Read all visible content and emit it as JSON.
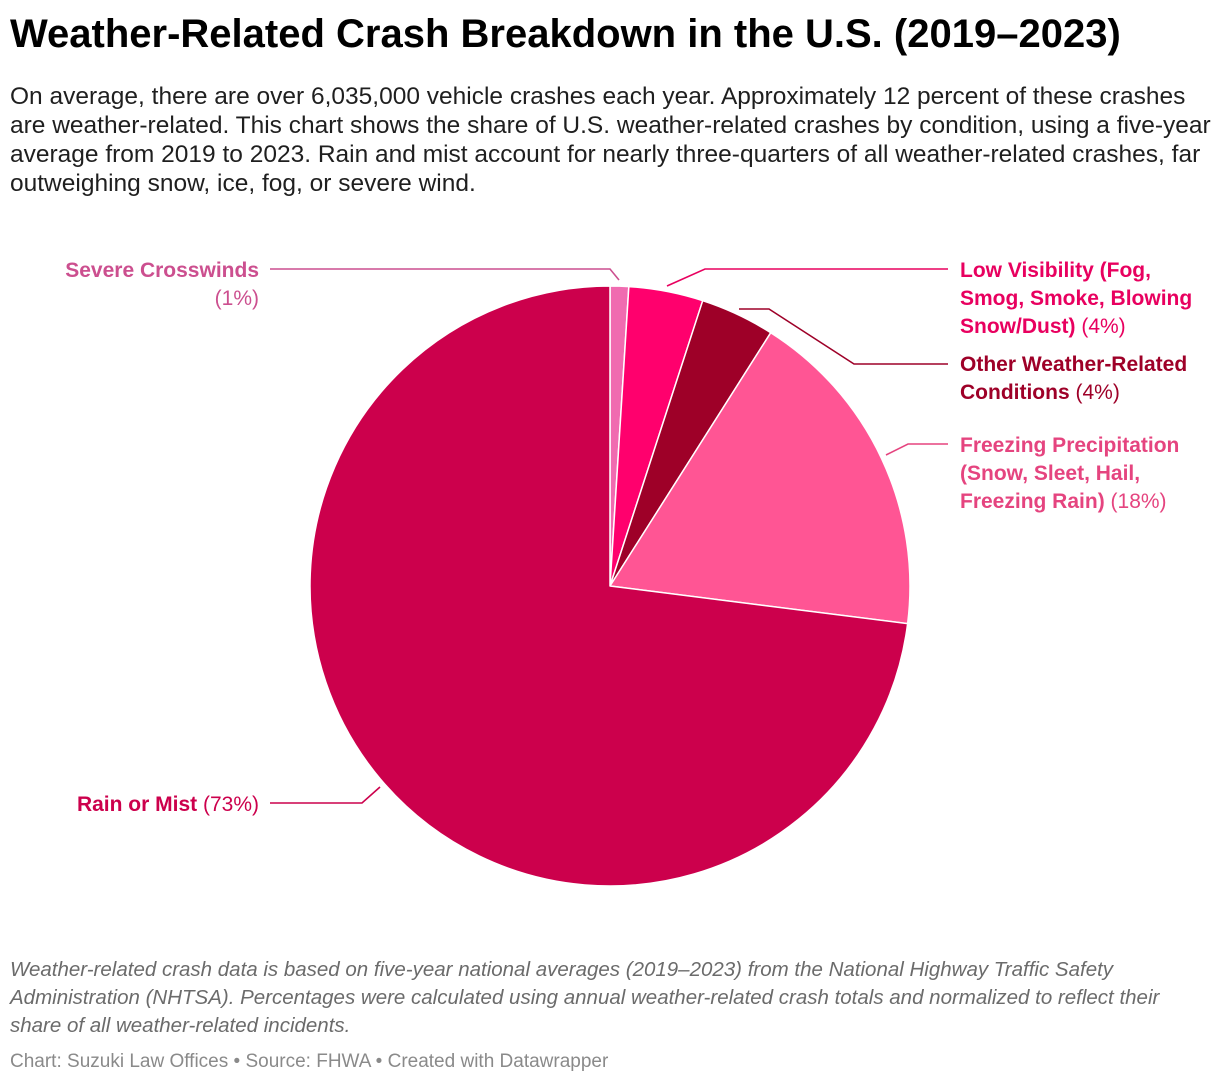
{
  "title": "Weather-Related Crash Breakdown in the U.S. (2019–2023)",
  "description": "On average, there are over 6,035,000 vehicle crashes each year. Approximately 12 percent of these crashes are weather-related. This chart shows the share of U.S. weather-related crashes by condition, using a five-year average from 2019 to 2023. Rain and mist account for nearly three-quarters of all weather-related crashes, far outweighing snow, ice, fog, or severe wind.",
  "notes": "Weather-related crash data is based on five-year national averages (2019–2023) from the National Highway Traffic Safety Administration (NHTSA). Percentages were calculated using annual weather-related crash totals and normalized to reflect their share of all weather-related incidents.",
  "credit": "Chart: Suzuki Law Offices • Source: FHWA • Created with Datawrapper",
  "chart_data": {
    "type": "pie",
    "title": "Weather-Related Crash Breakdown in the U.S. (2019–2023)",
    "unit": "%",
    "start": "12 o'clock, clockwise",
    "slices": [
      {
        "name": "Severe Crosswinds",
        "value": 1,
        "display": "(1%)",
        "color": "#f06bb0",
        "label_color": "#cc4f8f",
        "label_lines": [
          [
            "Severe Crosswinds"
          ],
          [
            "(1%)"
          ]
        ]
      },
      {
        "name": "Low Visibility (Fog, Smog, Smoke, Blowing Snow/Dust)",
        "value": 4,
        "display": "(4%)",
        "color": "#ff006d",
        "label_color": "#e8005f",
        "label_lines": [
          [
            "Low Visibility (Fog,"
          ],
          [
            "Smog, Smoke, Blowing"
          ],
          [
            "Snow/Dust)",
            "(4%)"
          ]
        ]
      },
      {
        "name": "Other Weather-Related Conditions",
        "value": 4,
        "display": "(4%)",
        "color": "#9e0028",
        "label_color": "#9e0028",
        "label_lines": [
          [
            "Other Weather-Related"
          ],
          [
            "Conditions",
            "(4%)"
          ]
        ]
      },
      {
        "name": "Freezing Precipitation (Snow, Sleet, Hail, Freezing Rain)",
        "value": 18,
        "display": "(18%)",
        "color": "#ff5594",
        "label_color": "#e5447f",
        "label_lines": [
          [
            "Freezing Precipitation"
          ],
          [
            "(Snow, Sleet, Hail,"
          ],
          [
            "Freezing Rain)",
            "(18%)"
          ]
        ]
      },
      {
        "name": "Rain or Mist",
        "value": 73,
        "display": "(73%)",
        "color": "#cc004c",
        "label_color": "#cc004c",
        "label_lines": [
          [
            "Rain or Mist",
            "(73%)"
          ]
        ]
      }
    ]
  }
}
